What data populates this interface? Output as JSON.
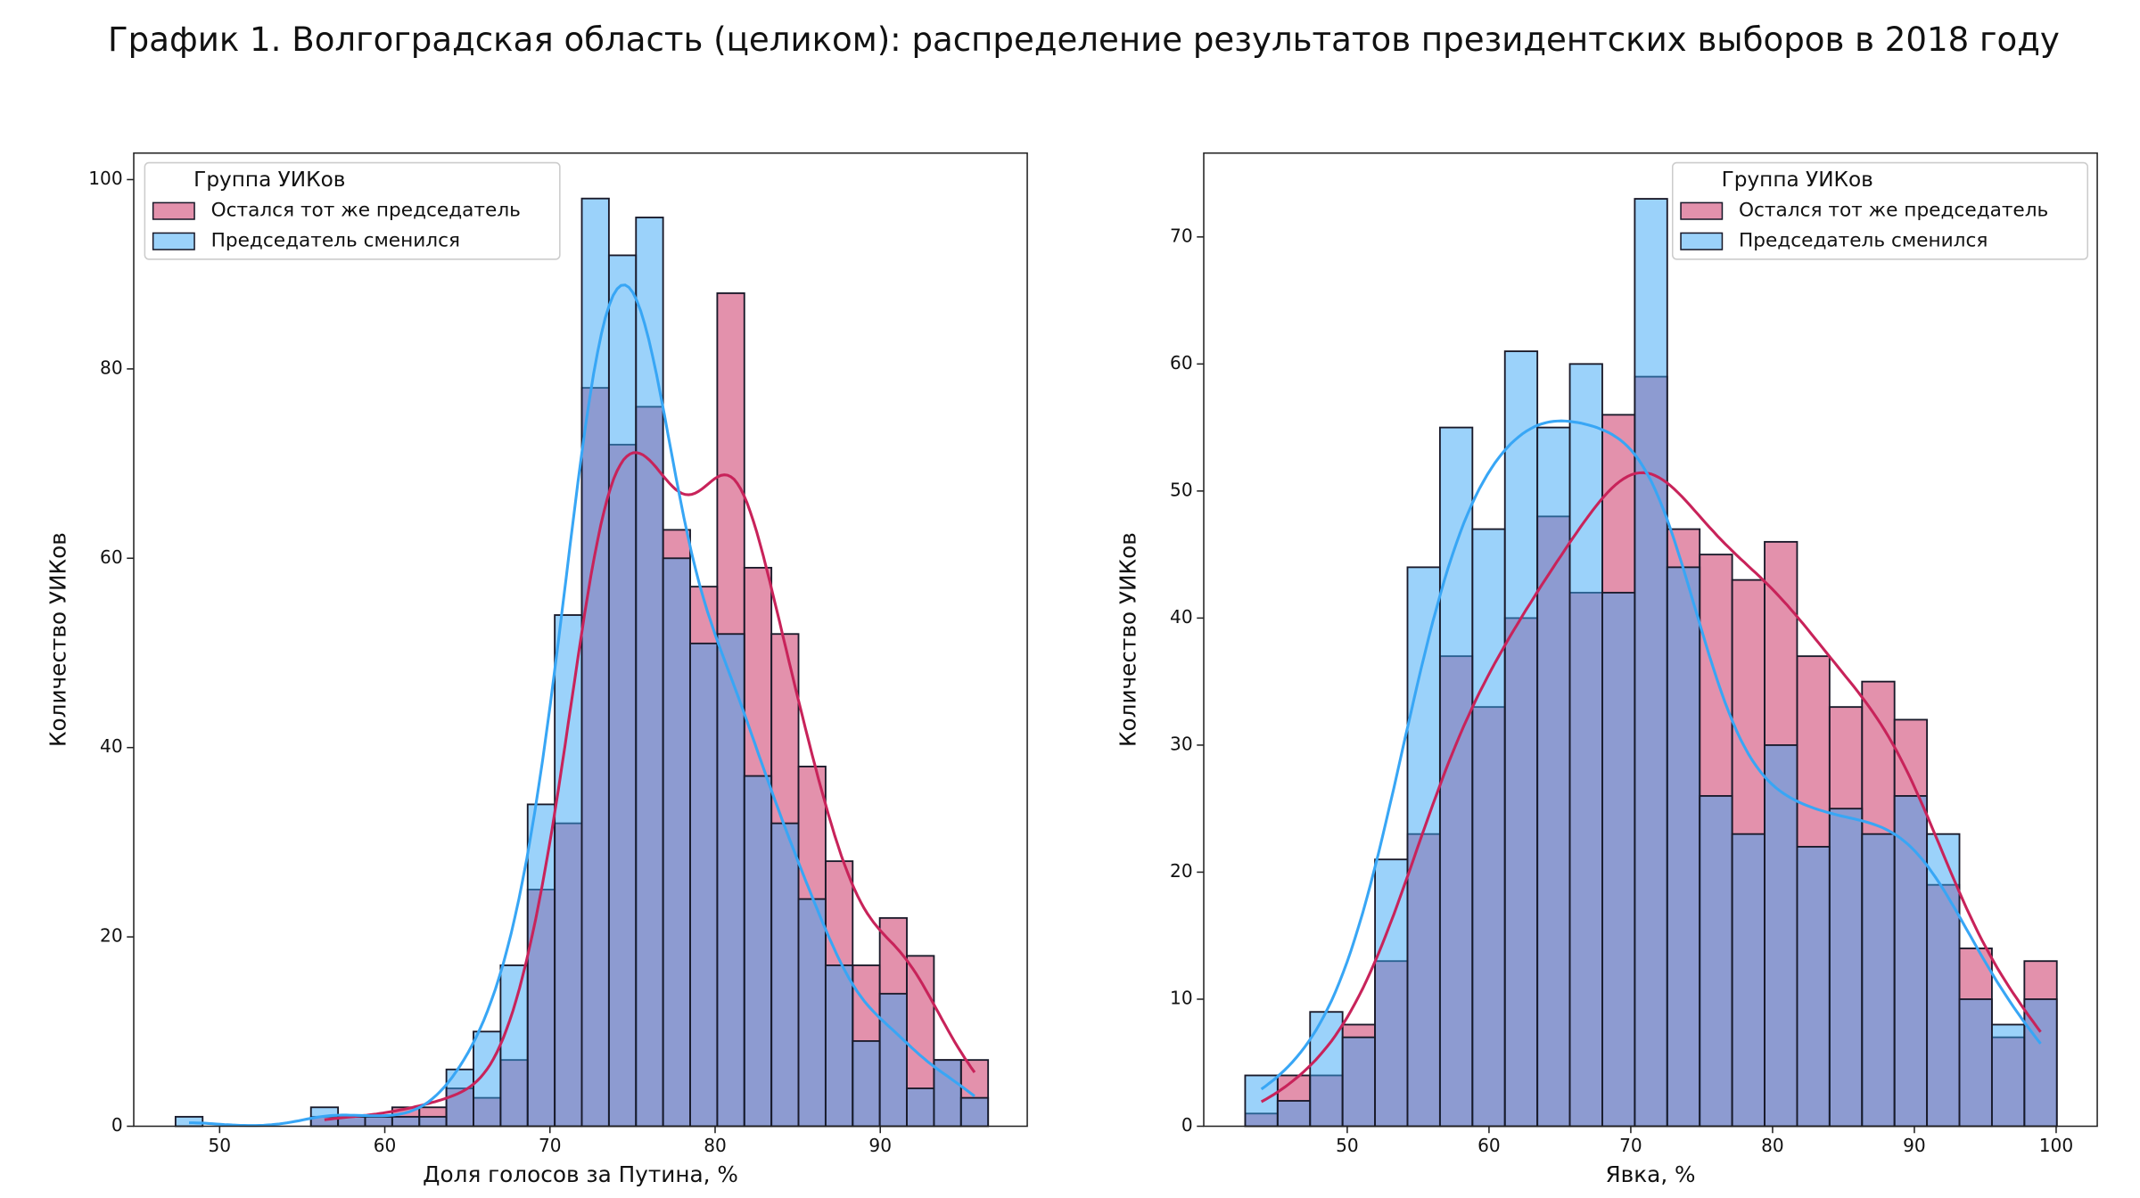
{
  "title": "График 1. Волгоградская область (целиком): распределение результатов президентских выборов в 2018 году",
  "chart_data": [
    {
      "type": "histogram",
      "xlabel": "Доля голосов за Путина, %",
      "ylabel": "Количество УИКов",
      "bins": [
        47.33,
        48.97,
        50.61,
        52.25,
        53.89,
        55.53,
        57.17,
        58.81,
        60.45,
        62.09,
        63.73,
        65.37,
        67.01,
        68.65,
        70.29,
        71.93,
        73.57,
        75.21,
        76.85,
        78.49,
        80.13,
        81.77,
        83.41,
        85.05,
        86.69,
        88.33,
        89.97,
        91.61,
        93.25,
        94.89,
        96.53
      ],
      "series": [
        {
          "name": "Остался тот же председатель",
          "color": "#c8235a",
          "values": [
            0,
            0,
            0,
            0,
            0,
            1,
            1,
            1,
            2,
            2,
            4,
            3,
            7,
            25,
            32,
            78,
            72,
            76,
            63,
            57,
            88,
            59,
            52,
            38,
            28,
            17,
            22,
            18,
            7,
            7
          ]
        },
        {
          "name": "Председатель сменился",
          "color": "#38a6f5",
          "values": [
            1,
            0,
            0,
            0,
            0,
            2,
            1,
            1,
            1,
            1,
            6,
            10,
            17,
            34,
            54,
            98,
            92,
            96,
            60,
            51,
            52,
            37,
            32,
            24,
            17,
            9,
            14,
            4,
            7,
            3
          ]
        }
      ],
      "xlim": [
        44.8,
        98.9
      ],
      "ylim": [
        0,
        102.8
      ],
      "xticks": [
        50,
        60,
        70,
        80,
        90
      ],
      "yticks": [
        0,
        20,
        40,
        60,
        80,
        100
      ],
      "legend_title": "Группа УИКов",
      "legend": "upper left",
      "kde": true
    },
    {
      "type": "histogram",
      "xlabel": "Явка, %",
      "ylabel": "Количество УИКов",
      "bins": [
        42.8,
        45.09,
        47.38,
        49.67,
        51.96,
        54.25,
        56.54,
        58.83,
        61.12,
        63.41,
        65.7,
        67.99,
        70.28,
        72.57,
        74.86,
        77.15,
        79.44,
        81.73,
        84.02,
        86.31,
        88.6,
        90.89,
        93.18,
        95.47,
        97.76,
        100.05
      ],
      "series": [
        {
          "name": "Остался тот же председатель",
          "color": "#c8235a",
          "values": [
            1,
            4,
            4,
            8,
            13,
            23,
            37,
            33,
            40,
            48,
            42,
            56,
            59,
            47,
            45,
            43,
            46,
            37,
            33,
            35,
            32,
            19,
            14,
            7,
            13
          ]
        },
        {
          "name": "Председатель сменился",
          "color": "#38a6f5",
          "values": [
            4,
            2,
            9,
            7,
            21,
            44,
            55,
            47,
            61,
            55,
            60,
            42,
            73,
            44,
            26,
            23,
            30,
            22,
            25,
            23,
            26,
            23,
            10,
            8,
            10
          ]
        }
      ],
      "xlim": [
        39.88,
        102.9
      ],
      "ylim": [
        0,
        76.6
      ],
      "xticks": [
        50,
        60,
        70,
        80,
        90,
        100
      ],
      "yticks": [
        0,
        10,
        20,
        30,
        40,
        50,
        60,
        70
      ],
      "legend_title": "Группа УИКов",
      "legend": "upper right",
      "kde": true
    }
  ]
}
